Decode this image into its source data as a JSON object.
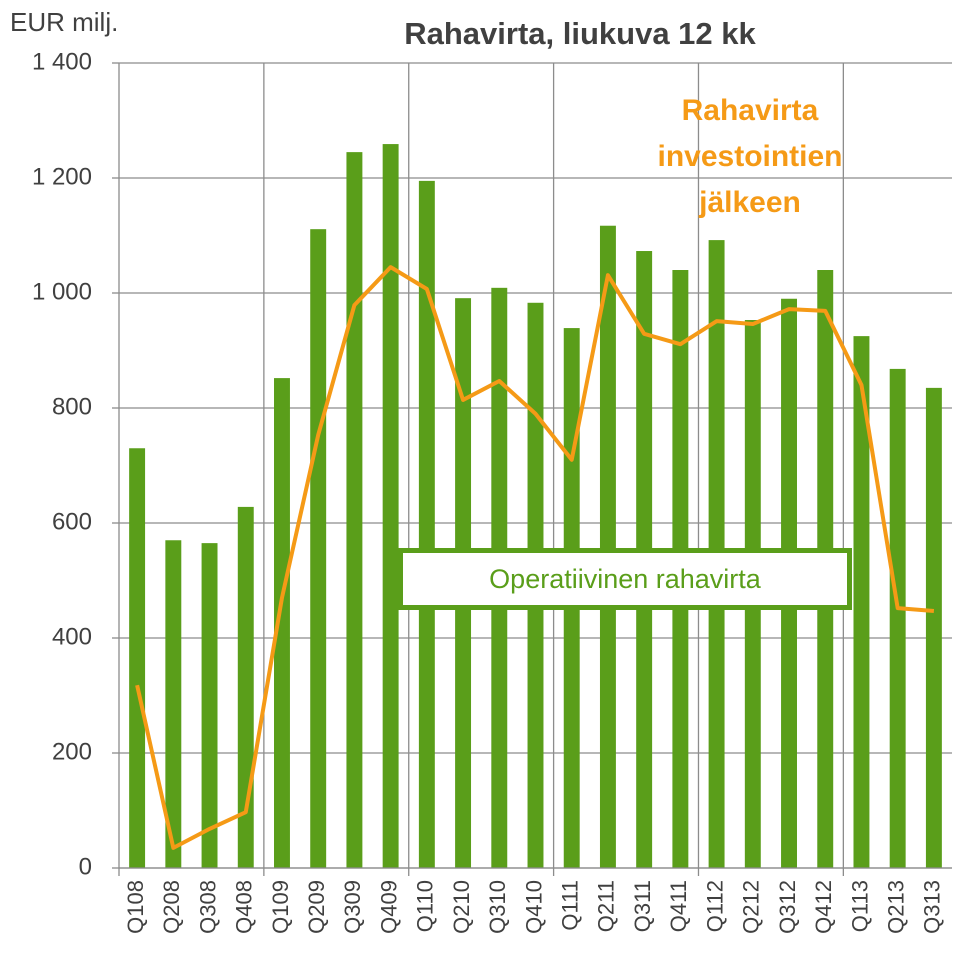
{
  "chart_data": {
    "type": "bar_line",
    "title": "Rahavirta, liukuva 12 kk",
    "y_axis_label": "EUR milj.",
    "categories": [
      "Q108",
      "Q208",
      "Q308",
      "Q408",
      "Q109",
      "Q209",
      "Q309",
      "Q409",
      "Q110",
      "Q210",
      "Q310",
      "Q410",
      "Q111",
      "Q211",
      "Q311",
      "Q411",
      "Q112",
      "Q212",
      "Q312",
      "Q412",
      "Q113",
      "Q213",
      "Q313"
    ],
    "series": [
      {
        "name": "Operatiivinen rahavirta",
        "type": "bar",
        "color": "#5a9e1a",
        "values": [
          730,
          570,
          565,
          628,
          852,
          1111,
          1245,
          1259,
          1195,
          991,
          1009,
          983,
          939,
          1117,
          1073,
          1040,
          1092,
          953,
          990,
          1040,
          925,
          868,
          835
        ]
      },
      {
        "name": "Rahavirta investointien jälkeen",
        "type": "line",
        "color": "#f59a16",
        "values": [
          318,
          35,
          68,
          97,
          470,
          753,
          979,
          1045,
          1007,
          814,
          847,
          790,
          710,
          1031,
          929,
          911,
          951,
          946,
          972,
          969,
          840,
          452,
          447
        ]
      }
    ],
    "ylim": [
      0,
      1400
    ],
    "yticks": [
      0,
      200,
      400,
      600,
      800,
      {
        "value": 1000,
        "label": "1 000"
      },
      {
        "value": 1200,
        "label": "1 200"
      },
      {
        "value": 1400,
        "label": "1 400"
      }
    ],
    "grid": true
  }
}
